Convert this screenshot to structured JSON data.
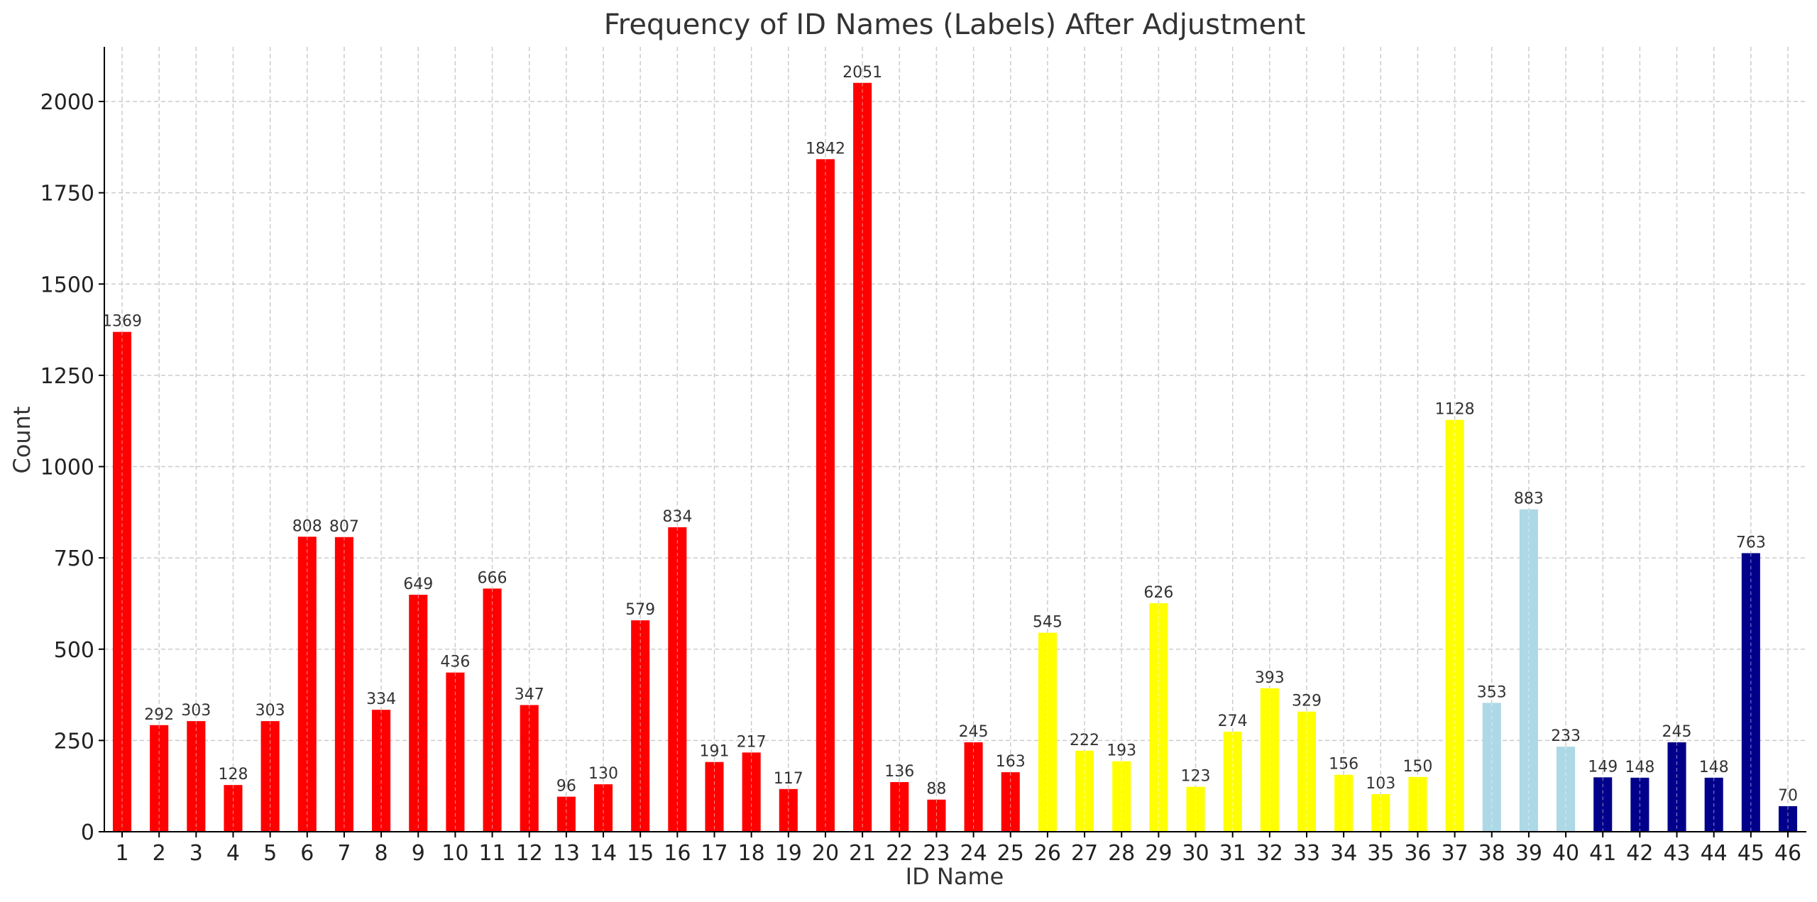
{
  "chart_data": {
    "type": "bar",
    "title": "Frequency of ID Names (Labels) After Adjustment",
    "xlabel": "ID Name",
    "ylabel": "Count",
    "ylim": [
      0,
      2150
    ],
    "yticks": [
      0,
      250,
      500,
      750,
      1000,
      1250,
      1500,
      1750,
      2000
    ],
    "grid": true,
    "categories": [
      "1",
      "2",
      "3",
      "4",
      "5",
      "6",
      "7",
      "8",
      "9",
      "10",
      "11",
      "12",
      "13",
      "14",
      "15",
      "16",
      "17",
      "18",
      "19",
      "20",
      "21",
      "22",
      "23",
      "24",
      "25",
      "26",
      "27",
      "28",
      "29",
      "30",
      "31",
      "32",
      "33",
      "34",
      "35",
      "36",
      "37",
      "38",
      "39",
      "40",
      "41",
      "42",
      "43",
      "44",
      "45",
      "46"
    ],
    "values": [
      1369,
      292,
      303,
      128,
      303,
      808,
      807,
      334,
      649,
      436,
      666,
      347,
      96,
      130,
      579,
      834,
      191,
      217,
      117,
      1842,
      2051,
      136,
      88,
      245,
      163,
      545,
      222,
      193,
      626,
      123,
      274,
      393,
      329,
      156,
      103,
      150,
      1128,
      353,
      883,
      233,
      149,
      148,
      245,
      148,
      763,
      70
    ],
    "bar_colors": [
      "#ff0000",
      "#ff0000",
      "#ff0000",
      "#ff0000",
      "#ff0000",
      "#ff0000",
      "#ff0000",
      "#ff0000",
      "#ff0000",
      "#ff0000",
      "#ff0000",
      "#ff0000",
      "#ff0000",
      "#ff0000",
      "#ff0000",
      "#ff0000",
      "#ff0000",
      "#ff0000",
      "#ff0000",
      "#ff0000",
      "#ff0000",
      "#ff0000",
      "#ff0000",
      "#ff0000",
      "#ff0000",
      "#ffff00",
      "#ffff00",
      "#ffff00",
      "#ffff00",
      "#ffff00",
      "#ffff00",
      "#ffff00",
      "#ffff00",
      "#ffff00",
      "#ffff00",
      "#ffff00",
      "#ffff00",
      "#add8e6",
      "#add8e6",
      "#add8e6",
      "#00008b",
      "#00008b",
      "#00008b",
      "#00008b",
      "#00008b",
      "#00008b"
    ]
  }
}
